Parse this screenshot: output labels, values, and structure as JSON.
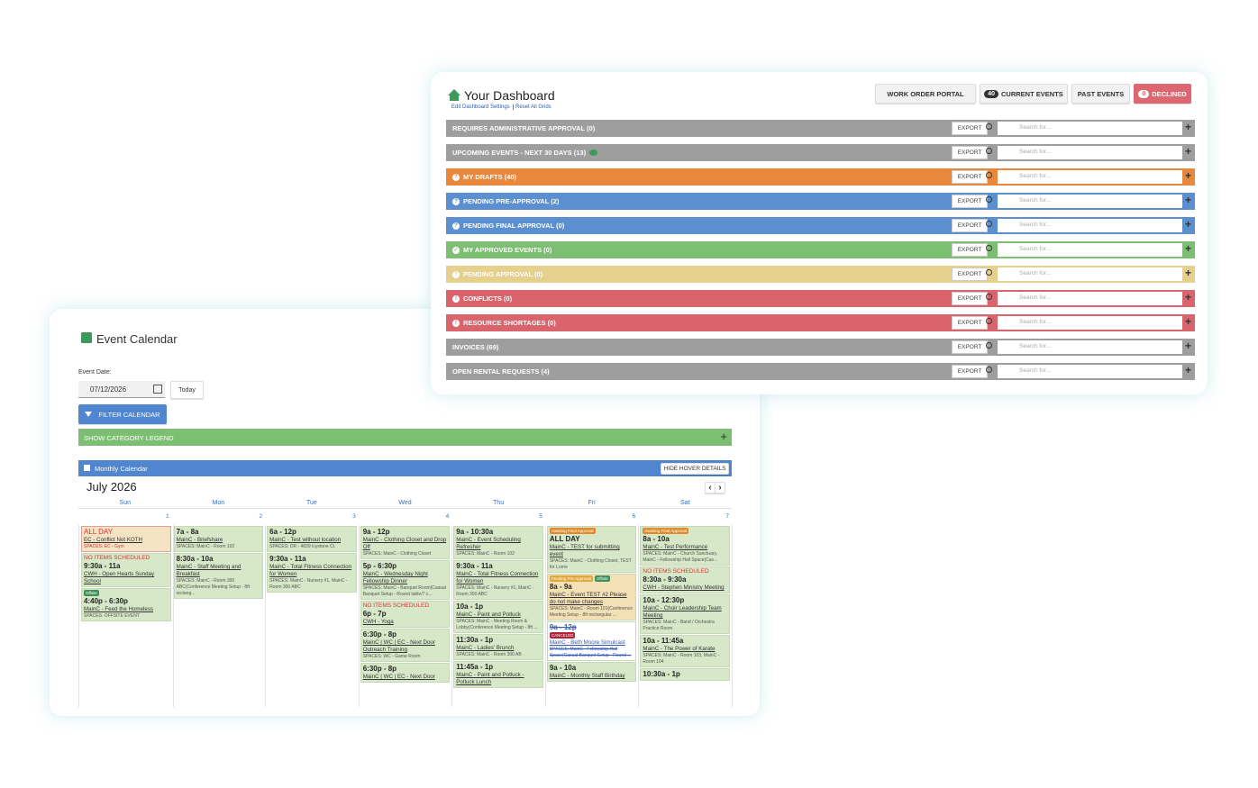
{
  "dashboard": {
    "title": "Your Dashboard",
    "links": [
      "Edit Dashboard Settings",
      "Reset All Grids"
    ],
    "buttons": [
      {
        "label": "WORK ORDER PORTAL"
      },
      {
        "count": 40,
        "label": "CURRENT EVENTS"
      },
      {
        "label": "PAST EVENTS"
      },
      {
        "count": 0,
        "label": "DECLINED",
        "color": "#dd6771"
      }
    ],
    "export_label": "EXPORT",
    "search_placeholder": "Search for...",
    "rows": [
      {
        "label": "REQUIRES ADMINISTRATIVE APPROVAL (0)",
        "color": "#9e9e9e"
      },
      {
        "label": "UPCOMING EVENTS - NEXT 30 DAYS (13)",
        "color": "#9e9e9e",
        "comment": true
      },
      {
        "label": "MY DRAFTS (40)",
        "color": "#e9873b",
        "icon": "?"
      },
      {
        "label": "PENDING PRE-APPROVAL (2)",
        "color": "#5b8fcf",
        "icon": "?"
      },
      {
        "label": "PENDING FINAL APPROVAL (0)",
        "color": "#5b8fcf",
        "icon": "?"
      },
      {
        "label": "MY APPROVED EVENTS (0)",
        "color": "#7dbf72",
        "icon": "✓"
      },
      {
        "label": "PENDING APPROVAL (0)",
        "color": "#e6d08e",
        "icon": "?"
      },
      {
        "label": "CONFLICTS (0)",
        "color": "#d9646b",
        "icon": "!"
      },
      {
        "label": "RESOURCE SHORTAGES (0)",
        "color": "#d9646b",
        "icon": "!"
      },
      {
        "label": "INVOICES (69)",
        "color": "#9e9e9e"
      },
      {
        "label": "OPEN RENTAL REQUESTS (4)",
        "color": "#9e9e9e"
      }
    ]
  },
  "calendar": {
    "title": "Event Calendar",
    "date_label": "Event Date:",
    "date_value": "07/12/2026",
    "today": "Today",
    "filter": "FILTER CALENDAR",
    "legend_bar": "SHOW CATEGORY LEGEND",
    "panel_title": "Monthly Calendar",
    "hover_button": "HIDE HOVER DETAILS",
    "month": "July 2026",
    "weekdays": [
      "Sun",
      "Mon",
      "Tue",
      "Wed",
      "Thu",
      "Fri",
      "Sat"
    ],
    "days": [
      {
        "date": 1,
        "events": [
          {
            "color": "#f3e3c3",
            "time": "ALL DAY",
            "title": "EC - Conflict Not KOTH",
            "spaces": "SPACES: EC - Gym",
            "alert": true
          },
          {
            "color": "#d6e8c8",
            "warning": "NO ITEMS SCHEDULED",
            "time": "9:30a - 11a",
            "title": "CWH - Open Hearts Sunday School"
          },
          {
            "color": "#d6e8c8",
            "badges": [
              {
                "text": "Offsite",
                "color": "#3f8f5a"
              }
            ],
            "time": "4:40p - 6:30p",
            "title": "MainC - Feed the Homeless",
            "spaces": "SPACES: OFFSITE EVENT"
          }
        ]
      },
      {
        "date": 2,
        "events": [
          {
            "color": "#d6e8c8",
            "time": "7a - 8a",
            "title": "MainC - Briefshare",
            "spaces": "SPACES: MainC - Room 102"
          },
          {
            "color": "#d6e8c8",
            "time": "8:30a - 10a",
            "title": "MainC - Staff Meeting and Breakfast",
            "spaces": "SPACES: MainC - Room 300 ABC(Conference Meeting Setup - 8ft rectang..."
          }
        ]
      },
      {
        "date": 3,
        "events": [
          {
            "color": "#d6e8c8",
            "time": "6a - 12p",
            "title": "MainC - Test without location",
            "spaces": "SPACES: DR - 4839 Icystone Ct."
          },
          {
            "color": "#d6e8c8",
            "time": "9:30a - 11a",
            "title": "MainC - Total Fitness Connection for Women",
            "spaces": "SPACES: MainC - Nursery #1, MainC - Room 300 ABC"
          }
        ]
      },
      {
        "date": 4,
        "events": [
          {
            "color": "#d6e8c8",
            "time": "9a - 12p",
            "title": "MainC - Clothing Closet and Drop Off",
            "spaces": "SPACES: MainC - Clothing Closet"
          },
          {
            "color": "#d6e8c8",
            "time": "5p - 6:30p",
            "title": "MainC - Wednesday Night Fellowship Dinner",
            "spaces": "SPACES: MainC - Banquet Room(Casual Banquet Setup - Round table/7 c..."
          },
          {
            "color": "#d6e8c8",
            "warning": "NO ITEMS SCHEDULED",
            "time": "6p - 7p",
            "title": "CWH - Yoga"
          },
          {
            "color": "#d6e8c8",
            "time": "6:30p - 8p",
            "title": "MainC | WC | EC - Next Door Outreach Training",
            "spaces": "SPACES: WC - Game Room"
          },
          {
            "color": "#d6e8c8",
            "time": "6:30p - 8p",
            "title": "MainC | WC | EC - Next Door"
          }
        ]
      },
      {
        "date": 5,
        "events": [
          {
            "color": "#d6e8c8",
            "time": "9a - 10:30a",
            "title": "MainC - Event Scheduling Refresher",
            "spaces": "SPACES: MainC - Room 102"
          },
          {
            "color": "#d6e8c8",
            "time": "9:30a - 11a",
            "title": "MainC - Total Fitness Connection for Women",
            "spaces": "SPACES: MainC - Nursery #1, MainC - Room 300 ABC"
          },
          {
            "color": "#d6e8c8",
            "time": "10a - 1p",
            "title": "MainC - Paint and Potluck",
            "spaces": "SPACES: MainC - Meeting Room & Lobby(Conference Meeting Setup - 8ft ..."
          },
          {
            "color": "#d6e8c8",
            "time": "11:30a - 1p",
            "title": "MainC - Ladies' Brunch",
            "spaces": "SPACES: MainC - Room 300 AB"
          },
          {
            "color": "#d6e8c8",
            "time": "11:45a - 1p",
            "title": "MainC - Paint and Potluck - Potluck Lunch"
          }
        ]
      },
      {
        "date": 6,
        "events": [
          {
            "color": "#d6e8c8",
            "badges": [
              {
                "text": "Awaiting Final Approval",
                "color": "#e08a2e"
              }
            ],
            "time": "ALL DAY",
            "title": "MainC - TEST for submitting event",
            "spaces": "SPACES: MainC - Clothing Closet, TEST for Lorrie"
          },
          {
            "color": "#f3e0b5",
            "badges": [
              {
                "text": "Pending Pre-Approval",
                "color": "#e0a73a"
              },
              {
                "text": "Offsite",
                "color": "#3f8f5a"
              }
            ],
            "time": "8a - 9a",
            "title": "MainC - Event TEST #2 Please do not make changes",
            "spaces": "SPACES: MainC - Room 101(Conference Meeting Setup - 8ft rectangular ..."
          },
          {
            "color": "#ffffff",
            "canceled": true,
            "time": "9a - 12p",
            "badges": [
              {
                "text": "CANCELED",
                "color": "#b0233a"
              }
            ],
            "title": "MainC - Beth Moore Simulcast",
            "spaces": "SPACES: MainC - Fellowship Hall Space(Casual Banquet Setup - Round ..."
          },
          {
            "color": "#d6e8c8",
            "time": "9a - 10a",
            "title": "MainC - Monthly Staff Birthday"
          }
        ]
      },
      {
        "date": 7,
        "events": [
          {
            "color": "#d6e8c8",
            "badges": [
              {
                "text": "Awaiting Final Approval",
                "color": "#e08a2e"
              }
            ],
            "time": "8a - 10a",
            "title": "MainC - Test Performance",
            "spaces": "SPACES: MainC - Church Sanctuary, MainC - Fellowship Hall Space(Cas..."
          },
          {
            "color": "#d6e8c8",
            "warning": "NO ITEMS SCHEDULED",
            "time": "8:30a - 9:30a",
            "title": "CWH - Stephen Ministry Meeting"
          },
          {
            "color": "#d6e8c8",
            "time": "10a - 12:30p",
            "title": "MainC - Choir Leadership Team Meeting",
            "spaces": "SPACES: MainC - Band / Orchestra Practice Room"
          },
          {
            "color": "#d6e8c8",
            "time": "10a - 11:45a",
            "title": "MainC - The Power of Karate",
            "spaces": "SPACES: MainC - Room 103, MainC - Room 104"
          },
          {
            "color": "#d6e8c8",
            "time": "10:30a - 1p"
          }
        ]
      }
    ]
  }
}
